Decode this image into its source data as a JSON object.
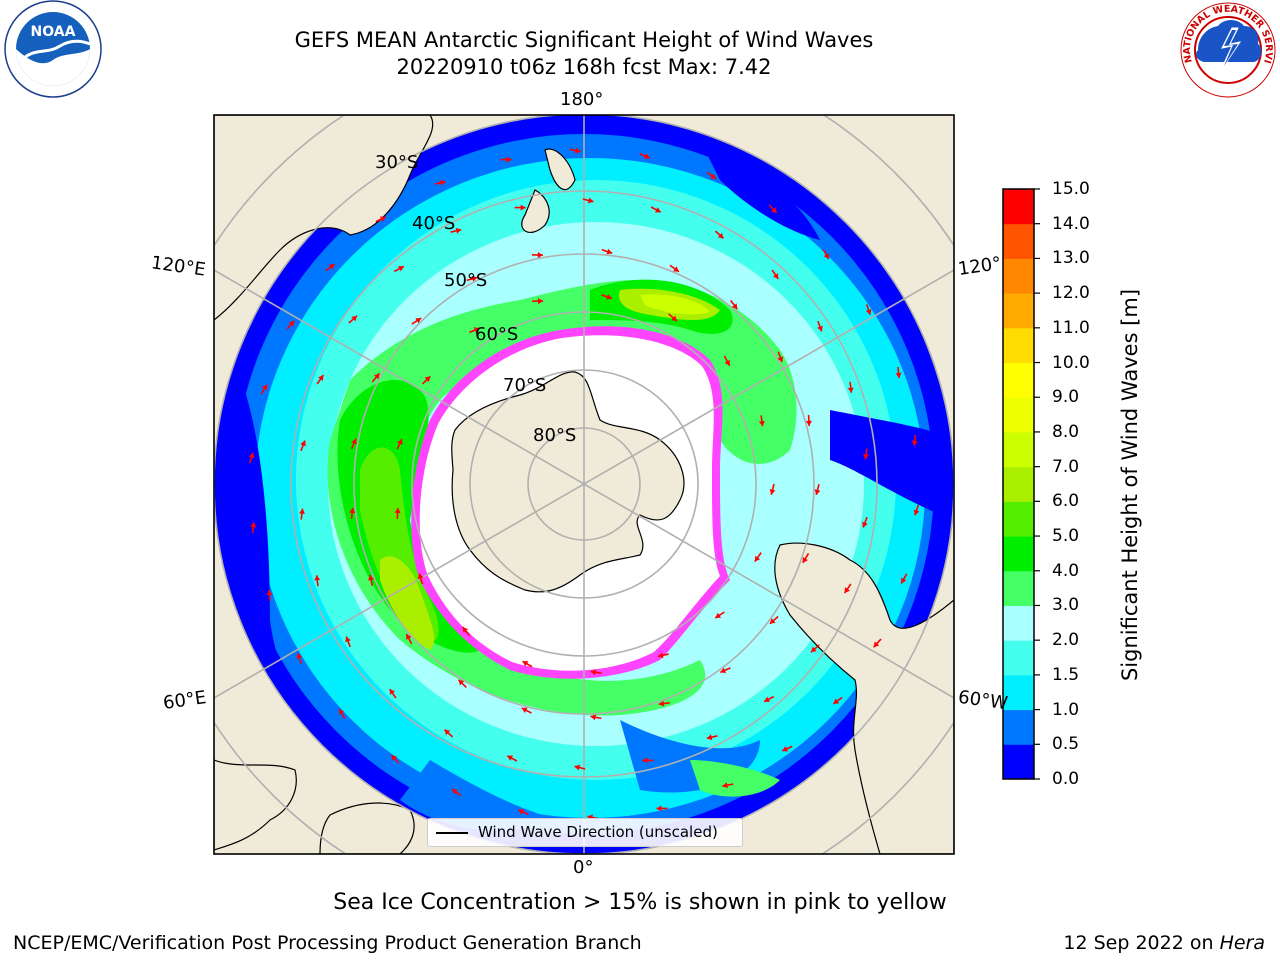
{
  "title": {
    "line1": "GEFS MEAN Antarctic Significant Height of Wind Waves",
    "line2": "20220910 t06z 168h fcst   Max: 7.42"
  },
  "logos": {
    "noaa": {
      "text": "NOAA"
    },
    "nws": {
      "text": "NATIONAL WEATHER SERVICE"
    }
  },
  "map": {
    "projection": "south-polar-stereographic",
    "longitude_labels": {
      "top": "180°",
      "left_upper": "120°E",
      "right_upper": "120°",
      "left_lower": "60°E",
      "right_lower": "60°W",
      "bottom": "0°"
    },
    "latitude_labels": [
      "30°S",
      "40°S",
      "50°S",
      "60°S",
      "70°S",
      "80°S"
    ],
    "colors": {
      "land": "#efebd8",
      "ice_free_ocean_min": "#0000ff",
      "sea_ice": "#ff44ff",
      "arrows": "#ff0000",
      "gridlines": "#b0b0b0"
    },
    "legend": {
      "text": "Wind Wave Direction (unscaled)"
    }
  },
  "colorbar": {
    "label": "Significant Height of Wind Waves [m]",
    "ticks": [
      "0.0",
      "0.5",
      "1.0",
      "1.5",
      "2.0",
      "3.0",
      "4.0",
      "5.0",
      "6.0",
      "7.0",
      "8.0",
      "9.0",
      "10.0",
      "11.0",
      "12.0",
      "13.0",
      "14.0",
      "15.0"
    ],
    "colors": [
      "#0000ff",
      "#0077ff",
      "#00eeff",
      "#44ffee",
      "#aaffff",
      "#44ff66",
      "#00ee00",
      "#55ee00",
      "#aaee00",
      "#ccff00",
      "#eeff00",
      "#ffff00",
      "#ffdd00",
      "#ffaa00",
      "#ff8800",
      "#ff5500",
      "#ff0000"
    ]
  },
  "note": "Sea Ice Concentration > 15% is shown in pink to yellow",
  "footer": {
    "left": "NCEP/EMC/Verification Post Processing Product Generation Branch",
    "right_date": "12 Sep 2022 on ",
    "right_machine": "Hera"
  }
}
